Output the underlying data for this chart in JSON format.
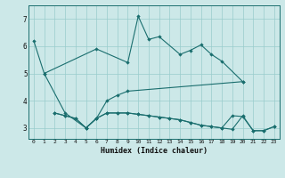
{
  "title": "",
  "xlabel": "Humidex (Indice chaleur)",
  "bg_color": "#cce8e8",
  "grid_color": "#99cccc",
  "line_color": "#1a6e6e",
  "yticks": [
    3,
    4,
    5,
    6,
    7
  ],
  "xticks": [
    0,
    1,
    2,
    3,
    4,
    5,
    6,
    7,
    8,
    9,
    10,
    11,
    12,
    13,
    14,
    15,
    16,
    17,
    18,
    19,
    20,
    21,
    22,
    23
  ],
  "xlim": [
    -0.5,
    23.5
  ],
  "ylim": [
    2.6,
    7.5
  ],
  "line1_x": [
    0,
    1,
    6,
    9,
    10,
    11,
    12,
    14,
    15,
    16,
    17,
    18,
    20
  ],
  "line1_y": [
    6.2,
    5.0,
    5.9,
    5.4,
    7.1,
    6.25,
    6.35,
    5.7,
    5.85,
    6.05,
    5.7,
    5.45,
    4.7
  ],
  "line2_x": [
    1,
    3,
    5,
    6,
    7,
    8,
    9,
    20
  ],
  "line2_y": [
    5.0,
    3.55,
    3.0,
    3.35,
    4.0,
    4.2,
    4.35,
    4.7
  ],
  "line3_x": [
    2,
    3,
    4,
    5,
    6,
    7,
    8,
    9,
    10,
    11,
    12,
    13,
    14,
    15,
    16,
    17,
    18,
    19,
    20,
    21,
    22,
    23
  ],
  "line3_y": [
    3.55,
    3.45,
    3.35,
    3.0,
    3.35,
    3.55,
    3.55,
    3.55,
    3.5,
    3.45,
    3.4,
    3.35,
    3.3,
    3.2,
    3.1,
    3.05,
    3.0,
    2.95,
    3.45,
    2.9,
    2.9,
    3.05
  ],
  "line4_x": [
    2,
    3,
    4,
    5,
    6,
    7,
    8,
    9,
    10,
    11,
    12,
    13,
    14,
    15,
    16,
    17,
    18,
    19,
    20,
    21,
    22,
    23
  ],
  "line4_y": [
    3.55,
    3.45,
    3.35,
    3.0,
    3.35,
    3.55,
    3.55,
    3.55,
    3.5,
    3.45,
    3.4,
    3.35,
    3.3,
    3.2,
    3.1,
    3.05,
    3.0,
    3.45,
    3.42,
    2.9,
    2.9,
    3.05
  ]
}
